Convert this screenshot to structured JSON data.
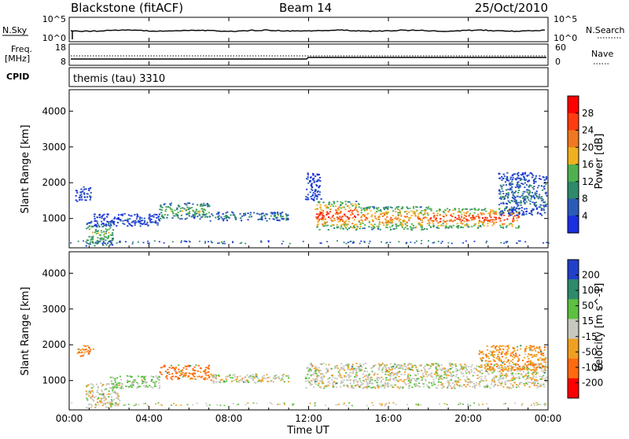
{
  "header": {
    "station": "Blackstone (fitACF)",
    "beam": "Beam 14",
    "date": "25/Oct/2010"
  },
  "nsky_panel": {
    "left_label": "N.Sky",
    "right_label": "N.Search",
    "left_ticks": [
      "10^5",
      "10^0"
    ],
    "right_ticks": [
      "10^5",
      "10^0"
    ]
  },
  "freq_panel": {
    "left_label_1": "Freq.",
    "left_label_2": "[MHz]",
    "right_label": "Nave",
    "left_ticks": [
      "18",
      "8"
    ],
    "right_ticks": [
      "60",
      "0"
    ]
  },
  "cpid_panel": {
    "label": "CPID",
    "value": "themis (tau) 3310"
  },
  "x_axis": {
    "label": "Time UT",
    "ticks": [
      "00:00",
      "04:00",
      "08:00",
      "12:00",
      "16:00",
      "20:00",
      "00:00"
    ]
  },
  "colors": {
    "power": [
      "#1a2fe0",
      "#2b5bb8",
      "#2e8a6a",
      "#4fb04f",
      "#f0b020",
      "#f07820",
      "#ff3c10",
      "#ff0000"
    ],
    "velocity": [
      "#ff0000",
      "#ff6a10",
      "#f0a020",
      "#c8c8c0",
      "#5cc040",
      "#2e8a6a",
      "#2040c8"
    ]
  },
  "chart_data": [
    {
      "type": "heatmap",
      "title": "",
      "ylabel": "Slant Range [km]",
      "xlabel": "Time UT",
      "xlim": [
        0,
        24
      ],
      "ylim": [
        180,
        4600
      ],
      "yticks": [
        "1000",
        "2000",
        "3000",
        "4000"
      ],
      "colorbar": {
        "label": "Power [dB]",
        "ticks": [
          "4",
          "8",
          "12",
          "16",
          "20",
          "24",
          "28"
        ],
        "range": [
          0,
          32
        ]
      },
      "regions": [
        {
          "t": [
            0.3,
            1.1
          ],
          "range": [
            1500,
            1900
          ],
          "level": 0.15
        },
        {
          "t": [
            0.8,
            2.2
          ],
          "range": [
            250,
            950
          ],
          "level": 0.45
        },
        {
          "t": [
            1.2,
            4.5
          ],
          "range": [
            800,
            1150
          ],
          "level": 0.15
        },
        {
          "t": [
            4.5,
            7.0
          ],
          "range": [
            1000,
            1450
          ],
          "level": 0.45
        },
        {
          "t": [
            7.0,
            11.0
          ],
          "range": [
            950,
            1200
          ],
          "level": 0.3
        },
        {
          "t": [
            11.8,
            12.6
          ],
          "range": [
            1500,
            2300
          ],
          "level": 0.15
        },
        {
          "t": [
            12.3,
            14.5
          ],
          "range": [
            700,
            1500
          ],
          "level": 0.85
        },
        {
          "t": [
            14.5,
            18.0
          ],
          "range": [
            700,
            1350
          ],
          "level": 0.72
        },
        {
          "t": [
            18.0,
            22.5
          ],
          "range": [
            750,
            1300
          ],
          "level": 0.85
        },
        {
          "t": [
            21.5,
            23.9
          ],
          "range": [
            1100,
            2300
          ],
          "level": 0.25
        }
      ]
    },
    {
      "type": "heatmap",
      "title": "",
      "ylabel": "Slant Range [km]",
      "xlabel": "Time UT",
      "xlim": [
        0,
        24
      ],
      "ylim": [
        180,
        4600
      ],
      "yticks": [
        "1000",
        "2000",
        "3000",
        "4000"
      ],
      "colorbar": {
        "label": "Velocity [m s^-1]",
        "ticks": [
          "200",
          "100",
          "50",
          "15",
          "-15",
          "-50",
          "-100",
          "-200"
        ]
      },
      "regions": [
        {
          "t": [
            0.3,
            1.2
          ],
          "range": [
            1700,
            2000
          ],
          "vel": -60
        },
        {
          "t": [
            0.8,
            2.5
          ],
          "range": [
            250,
            950
          ],
          "vel": 0
        },
        {
          "t": [
            2.0,
            4.5
          ],
          "range": [
            800,
            1150
          ],
          "vel": 20
        },
        {
          "t": [
            4.5,
            7.0
          ],
          "range": [
            1050,
            1450
          ],
          "vel": -70
        },
        {
          "t": [
            7.0,
            11.0
          ],
          "range": [
            950,
            1200
          ],
          "vel": 0
        },
        {
          "t": [
            11.8,
            23.9
          ],
          "range": [
            800,
            1500
          ],
          "vel": 0
        },
        {
          "t": [
            20.5,
            23.9
          ],
          "range": [
            1300,
            2000
          ],
          "vel": -40
        }
      ]
    }
  ]
}
